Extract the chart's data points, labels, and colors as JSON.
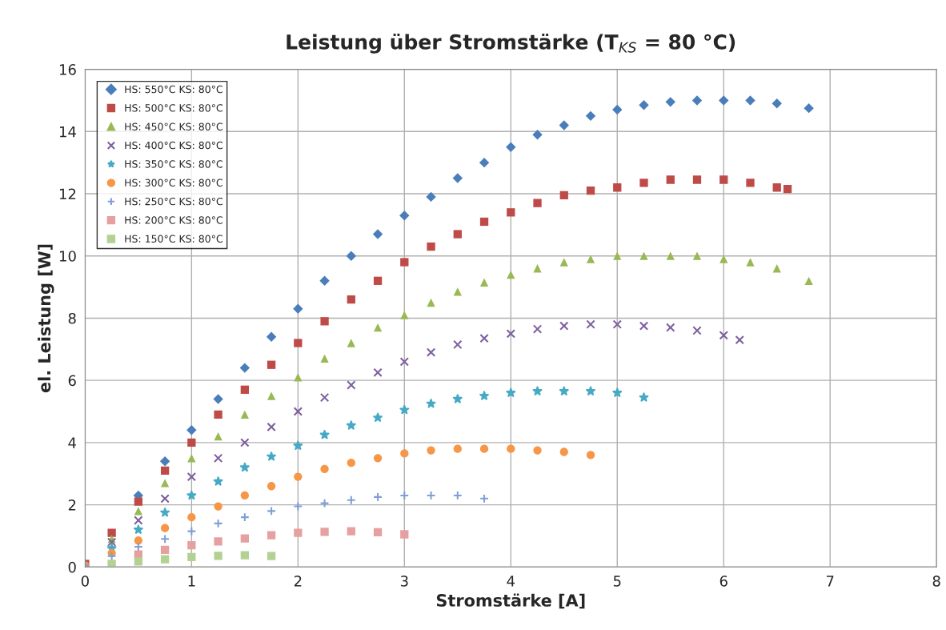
{
  "chart_data": {
    "type": "scatter",
    "title": "Leistung über Stromstärke (T$_{KS}$ = 80 °C)",
    "xlabel": "Stromstärke [A]",
    "ylabel": "el. Leistung [W]",
    "xlim": [
      0,
      8
    ],
    "xticks": [
      0,
      1,
      2,
      3,
      4,
      5,
      6,
      7,
      8
    ],
    "ylim": [
      0,
      16
    ],
    "yticks": [
      0,
      2,
      4,
      6,
      8,
      10,
      12,
      14,
      16
    ],
    "grid": true,
    "legend": "top left",
    "series": [
      {
        "name": "HS: 550°C KS: 80°C",
        "color": "#4a7ebb",
        "marker": "diamond",
        "x": [
          0.5,
          0.75,
          1,
          1.25,
          1.5,
          1.75,
          2,
          2.25,
          2.5,
          2.75,
          3,
          3.25,
          3.5,
          3.75,
          4,
          4.25,
          4.5,
          4.75,
          5,
          5.25,
          5.5,
          5.75,
          6,
          6.25,
          6.5,
          6.8
        ],
        "values": [
          2.3,
          3.4,
          4.4,
          5.4,
          6.4,
          7.4,
          8.3,
          9.2,
          10.0,
          10.7,
          11.3,
          11.9,
          12.5,
          13.0,
          13.5,
          13.9,
          14.2,
          14.5,
          14.7,
          14.85,
          14.95,
          15.0,
          15.0,
          15.0,
          14.9,
          14.75
        ]
      },
      {
        "name": "HS: 500°C KS: 80°C",
        "color": "#be4b48",
        "marker": "square",
        "x": [
          0,
          0.25,
          0.5,
          0.75,
          1,
          1.25,
          1.5,
          1.75,
          2,
          2.25,
          2.5,
          2.75,
          3,
          3.25,
          3.5,
          3.75,
          4,
          4.25,
          4.5,
          4.75,
          5,
          5.25,
          5.5,
          5.75,
          6,
          6.25,
          6.5,
          6.6
        ],
        "values": [
          0.1,
          1.1,
          2.1,
          3.1,
          4.0,
          4.9,
          5.7,
          6.5,
          7.2,
          7.9,
          8.6,
          9.2,
          9.8,
          10.3,
          10.7,
          11.1,
          11.4,
          11.7,
          11.95,
          12.1,
          12.2,
          12.35,
          12.45,
          12.45,
          12.45,
          12.35,
          12.2,
          12.15
        ]
      },
      {
        "name": "HS: 450°C KS: 80°C",
        "color": "#98b954",
        "marker": "triangle",
        "x": [
          0.25,
          0.5,
          0.75,
          1,
          1.25,
          1.5,
          1.75,
          2,
          2.25,
          2.5,
          2.75,
          3,
          3.25,
          3.5,
          3.75,
          4,
          4.25,
          4.5,
          4.75,
          5,
          5.25,
          5.5,
          5.75,
          6,
          6.25,
          6.5,
          6.8
        ],
        "values": [
          0.9,
          1.8,
          2.7,
          3.5,
          4.2,
          4.9,
          5.5,
          6.1,
          6.7,
          7.2,
          7.7,
          8.1,
          8.5,
          8.85,
          9.15,
          9.4,
          9.6,
          9.8,
          9.9,
          10.0,
          10.0,
          10.0,
          10.0,
          9.9,
          9.8,
          9.6,
          9.2
        ]
      },
      {
        "name": "HS: 400°C KS: 80°C",
        "color": "#7d60a0",
        "marker": "cross",
        "x": [
          0.25,
          0.5,
          0.75,
          1,
          1.25,
          1.5,
          1.75,
          2,
          2.25,
          2.5,
          2.75,
          3,
          3.25,
          3.5,
          3.75,
          4,
          4.25,
          4.5,
          4.75,
          5,
          5.25,
          5.5,
          5.75,
          6,
          6.15
        ],
        "values": [
          0.8,
          1.5,
          2.2,
          2.9,
          3.5,
          4.0,
          4.5,
          5.0,
          5.45,
          5.85,
          6.25,
          6.6,
          6.9,
          7.15,
          7.35,
          7.5,
          7.65,
          7.75,
          7.8,
          7.8,
          7.75,
          7.7,
          7.6,
          7.45,
          7.3
        ]
      },
      {
        "name": "HS: 350°C KS: 80°C",
        "color": "#46aac5",
        "marker": "star",
        "x": [
          0.25,
          0.5,
          0.75,
          1,
          1.25,
          1.5,
          1.75,
          2,
          2.25,
          2.5,
          2.75,
          3,
          3.25,
          3.5,
          3.75,
          4,
          4.25,
          4.5,
          4.75,
          5,
          5.25
        ],
        "values": [
          0.6,
          1.2,
          1.75,
          2.3,
          2.75,
          3.2,
          3.55,
          3.9,
          4.25,
          4.55,
          4.8,
          5.05,
          5.25,
          5.4,
          5.5,
          5.6,
          5.65,
          5.65,
          5.65,
          5.6,
          5.45
        ]
      },
      {
        "name": "HS: 300°C KS: 80°C",
        "color": "#f79646",
        "marker": "circle",
        "x": [
          0,
          0.25,
          0.5,
          0.75,
          1,
          1.25,
          1.5,
          1.75,
          2,
          2.25,
          2.5,
          2.75,
          3,
          3.25,
          3.5,
          3.75,
          4,
          4.25,
          4.5,
          4.75
        ],
        "values": [
          0.05,
          0.45,
          0.85,
          1.25,
          1.6,
          1.95,
          2.3,
          2.6,
          2.9,
          3.15,
          3.35,
          3.5,
          3.65,
          3.75,
          3.8,
          3.8,
          3.8,
          3.75,
          3.7,
          3.6
        ]
      },
      {
        "name": "HS: 250°C KS: 80°C",
        "color": "#7f9fd6",
        "marker": "plus",
        "x": [
          0,
          0.25,
          0.5,
          0.75,
          1,
          1.25,
          1.5,
          1.75,
          2,
          2.25,
          2.5,
          2.75,
          3,
          3.25,
          3.5,
          3.75
        ],
        "values": [
          0.05,
          0.35,
          0.65,
          0.9,
          1.15,
          1.4,
          1.6,
          1.8,
          1.95,
          2.05,
          2.15,
          2.25,
          2.3,
          2.3,
          2.3,
          2.2
        ]
      },
      {
        "name": "HS: 200°C KS: 80°C",
        "color": "#e6a0a0",
        "marker": "square",
        "x": [
          0.5,
          0.75,
          1,
          1.25,
          1.5,
          1.75,
          2,
          2.25,
          2.5,
          2.75,
          3
        ],
        "values": [
          0.4,
          0.55,
          0.7,
          0.82,
          0.92,
          1.02,
          1.1,
          1.13,
          1.15,
          1.12,
          1.05
        ]
      },
      {
        "name": "HS: 150°C KS: 80°C",
        "color": "#b3d193",
        "marker": "square",
        "x": [
          0.25,
          0.5,
          0.75,
          1,
          1.25,
          1.5,
          1.75
        ],
        "values": [
          0.1,
          0.18,
          0.25,
          0.32,
          0.36,
          0.38,
          0.35
        ]
      }
    ]
  }
}
